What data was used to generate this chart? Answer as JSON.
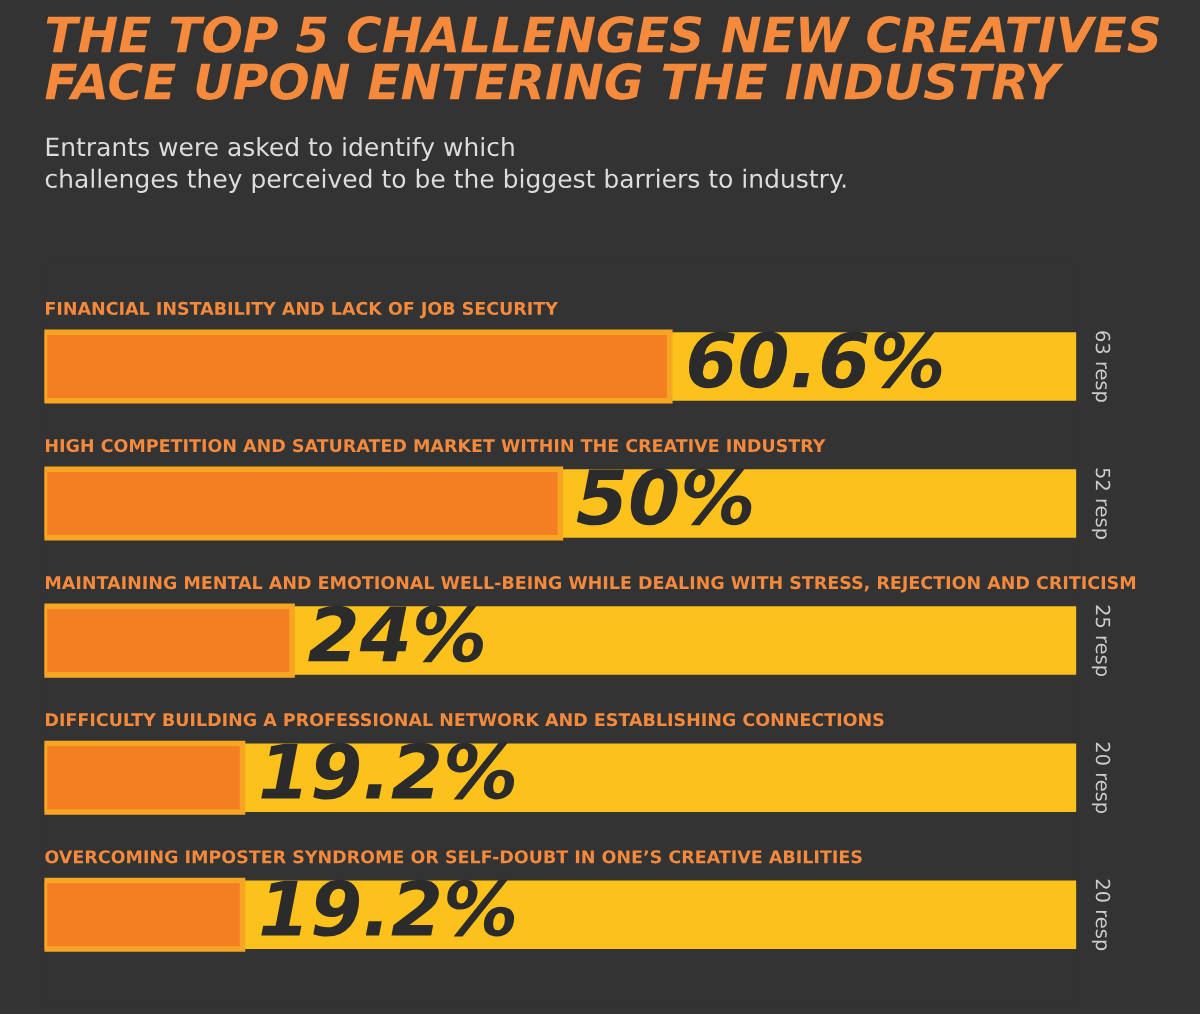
{
  "chart_data": {
    "type": "bar",
    "orientation": "horizontal",
    "title": "THE TOP 5 CHALLENGES NEW CREATIVES\nFACE UPON ENTERING THE INDUSTRY",
    "subtitle": "Entrants were asked to identify which\nchallenges they perceived to be the biggest barriers to industry.",
    "categories": [
      "FINANCIAL INSTABILITY AND LACK OF JOB SECURITY",
      "HIGH COMPETITION AND SATURATED MARKET WITHIN THE CREATIVE INDUSTRY",
      "MAINTAINING MENTAL AND EMOTIONAL WELL-BEING WHILE DEALING WITH STRESS, REJECTION AND CRITICISM",
      "DIFFICULTY BUILDING A PROFESSIONAL NETWORK AND ESTABLISHING CONNECTIONS",
      "OVERCOMING IMPOSTER SYNDROME OR SELF-DOUBT IN ONE’S CREATIVE ABILITIES"
    ],
    "stacked": true,
    "series": [
      {
        "color": "#f47f22",
        "values": [
          60.6,
          50,
          24,
          19.2,
          19.2
        ],
        "value_labels": [
          "60.6%",
          "50%",
          "24%",
          "19.2%",
          "19.2%"
        ]
      },
      {
        "color": "#fcc21b",
        "values": [
          39.4,
          50,
          76,
          80.8,
          80.8
        ]
      }
    ],
    "xlim": [
      0,
      100
    ],
    "annotations": [
      "63 resp",
      "52 resp",
      "25 resp",
      "20 resp",
      "20 resp"
    ],
    "legend": false
  }
}
